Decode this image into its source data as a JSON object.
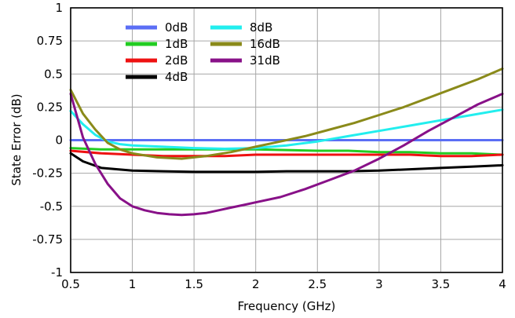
{
  "chart_data": {
    "type": "line",
    "xlabel": "Frequency (GHz)",
    "ylabel": "State Error (dB)",
    "xlim": [
      0.5,
      4
    ],
    "ylim": [
      -1,
      1
    ],
    "x_ticks": [
      0.5,
      1,
      1.5,
      2,
      2.5,
      3,
      3.5,
      4
    ],
    "x_tick_labels": [
      "0.5",
      "1",
      "1.5",
      "2",
      "2.5",
      "3",
      "3.5",
      "4"
    ],
    "y_ticks": [
      1,
      0.75,
      0.5,
      0.25,
      0,
      -0.25,
      -0.5,
      -0.75,
      -1
    ],
    "y_tick_labels": [
      "1",
      "0.75",
      "0.5",
      "0.25",
      "0",
      "-0.25",
      "-0.5",
      "-0.75",
      "-1"
    ],
    "grid": true,
    "legend_position": "top-center",
    "series": [
      {
        "name": "0dB",
        "color": "#5b6ef5",
        "x": [
          0.5,
          1.0,
          1.5,
          2.0,
          2.5,
          3.0,
          3.5,
          4.0
        ],
        "y": [
          0,
          0,
          0,
          0,
          0,
          0,
          0,
          0
        ]
      },
      {
        "name": "1dB",
        "color": "#22cc22",
        "x": [
          0.5,
          0.75,
          1.0,
          1.25,
          1.5,
          1.75,
          2.0,
          2.25,
          2.5,
          2.75,
          3.0,
          3.25,
          3.5,
          3.75,
          4.0
        ],
        "y": [
          -0.06,
          -0.07,
          -0.07,
          -0.07,
          -0.07,
          -0.07,
          -0.07,
          -0.075,
          -0.08,
          -0.08,
          -0.09,
          -0.09,
          -0.1,
          -0.1,
          -0.11
        ]
      },
      {
        "name": "2dB",
        "color": "#ee1111",
        "x": [
          0.5,
          0.75,
          1.0,
          1.25,
          1.5,
          1.75,
          2.0,
          2.25,
          2.5,
          2.75,
          3.0,
          3.25,
          3.5,
          3.75,
          4.0
        ],
        "y": [
          -0.08,
          -0.1,
          -0.11,
          -0.12,
          -0.12,
          -0.12,
          -0.11,
          -0.11,
          -0.11,
          -0.11,
          -0.11,
          -0.11,
          -0.12,
          -0.12,
          -0.11
        ]
      },
      {
        "name": "4dB",
        "color": "#000000",
        "x": [
          0.5,
          0.6,
          0.75,
          1.0,
          1.25,
          1.5,
          1.75,
          2.0,
          2.25,
          2.5,
          2.75,
          3.0,
          3.25,
          3.5,
          3.75,
          4.0
        ],
        "y": [
          -0.1,
          -0.16,
          -0.21,
          -0.23,
          -0.235,
          -0.24,
          -0.24,
          -0.24,
          -0.235,
          -0.235,
          -0.235,
          -0.23,
          -0.22,
          -0.21,
          -0.2,
          -0.19
        ]
      },
      {
        "name": "8dB",
        "color": "#22eeee",
        "x": [
          0.5,
          0.6,
          0.7,
          0.8,
          0.9,
          1.0,
          1.25,
          1.5,
          1.75,
          2.0,
          2.25,
          2.5,
          2.75,
          3.0,
          3.25,
          3.5,
          3.75,
          4.0
        ],
        "y": [
          0.22,
          0.12,
          0.04,
          -0.01,
          -0.03,
          -0.04,
          -0.05,
          -0.06,
          -0.065,
          -0.06,
          -0.04,
          -0.01,
          0.03,
          0.07,
          0.11,
          0.15,
          0.19,
          0.23
        ]
      },
      {
        "name": "16dB",
        "color": "#8a8a1a",
        "x": [
          0.5,
          0.6,
          0.7,
          0.8,
          0.9,
          1.0,
          1.2,
          1.4,
          1.6,
          1.8,
          2.0,
          2.2,
          2.4,
          2.6,
          2.8,
          3.0,
          3.2,
          3.4,
          3.6,
          3.8,
          4.0
        ],
        "y": [
          0.38,
          0.2,
          0.08,
          -0.02,
          -0.07,
          -0.1,
          -0.13,
          -0.14,
          -0.12,
          -0.09,
          -0.05,
          -0.01,
          0.03,
          0.08,
          0.13,
          0.19,
          0.25,
          0.32,
          0.39,
          0.46,
          0.54
        ]
      },
      {
        "name": "31dB",
        "color": "#881188",
        "x": [
          0.5,
          0.6,
          0.7,
          0.8,
          0.9,
          1.0,
          1.1,
          1.2,
          1.3,
          1.4,
          1.5,
          1.6,
          1.7,
          1.8,
          1.9,
          2.0,
          2.2,
          2.4,
          2.6,
          2.8,
          3.0,
          3.2,
          3.4,
          3.6,
          3.8,
          4.0
        ],
        "y": [
          0.35,
          0.02,
          -0.18,
          -0.33,
          -0.44,
          -0.5,
          -0.53,
          -0.55,
          -0.56,
          -0.565,
          -0.56,
          -0.55,
          -0.53,
          -0.51,
          -0.49,
          -0.47,
          -0.43,
          -0.37,
          -0.3,
          -0.23,
          -0.14,
          -0.04,
          0.07,
          0.17,
          0.27,
          0.35
        ]
      }
    ]
  }
}
